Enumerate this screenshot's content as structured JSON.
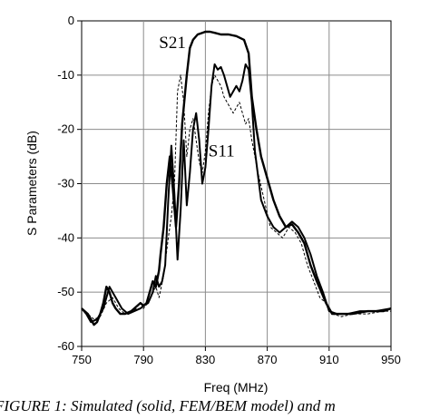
{
  "chart_data": {
    "type": "line",
    "xlabel": "Freq (MHz)",
    "ylabel": "S Parameters (dB)",
    "xlim": [
      750,
      950
    ],
    "ylim": [
      -60,
      0
    ],
    "xticks": [
      750,
      790,
      830,
      870,
      910,
      950
    ],
    "yticks": [
      0,
      -10,
      -20,
      -30,
      -40,
      -50,
      -60
    ],
    "grid": true,
    "legend": "none",
    "series": [
      {
        "name": "S21",
        "style": "solid",
        "x": [
          750,
          752,
          754,
          756,
          758,
          760,
          762,
          764,
          766,
          768,
          770,
          772,
          775,
          778,
          782,
          786,
          788,
          790,
          792,
          794,
          796,
          798,
          800,
          801,
          803,
          805,
          807,
          809,
          811,
          813,
          815,
          818,
          820,
          822,
          825,
          828,
          830,
          833,
          836,
          840,
          845,
          850,
          855,
          858,
          860,
          863,
          866,
          870,
          874,
          878,
          882,
          886,
          890,
          894,
          898,
          902,
          905,
          908,
          912,
          918,
          925,
          935,
          945,
          950
        ],
        "y": [
          -53,
          -53.5,
          -54,
          -55,
          -56,
          -55.5,
          -54,
          -52,
          -49,
          -50,
          -52,
          -53,
          -54,
          -54,
          -53.5,
          -52.5,
          -52,
          -52.5,
          -52,
          -50,
          -48,
          -49,
          -46,
          -43,
          -38,
          -30,
          -25,
          -31,
          -38,
          -30,
          -19,
          -10,
          -5,
          -3.5,
          -2.5,
          -2.2,
          -2,
          -2,
          -2.2,
          -2.5,
          -2.5,
          -2.8,
          -3.5,
          -6,
          -14,
          -20,
          -25,
          -29,
          -33,
          -36,
          -38,
          -37.5,
          -39,
          -41,
          -45,
          -48,
          -50,
          -52,
          -54,
          -54,
          -54,
          -53.5,
          -53.5,
          -53
        ]
      },
      {
        "name": "S11",
        "style": "solid",
        "x": [
          750,
          753,
          756,
          760,
          764,
          768,
          772,
          776,
          780,
          784,
          788,
          790,
          793,
          796,
          798,
          800,
          802,
          804,
          806,
          808,
          810,
          812,
          814,
          816,
          818,
          820,
          822,
          824,
          826,
          828,
          830,
          832,
          834,
          836,
          838,
          840,
          842,
          844,
          846,
          848,
          850,
          852,
          854,
          856,
          858,
          860,
          862,
          866,
          870,
          874,
          878,
          882,
          886,
          890,
          894,
          898,
          902,
          906,
          910,
          915,
          922,
          930,
          940,
          950
        ],
        "y": [
          -53,
          -54,
          -55.5,
          -55,
          -53,
          -49,
          -51,
          -53,
          -54,
          -53.5,
          -53,
          -52.5,
          -52,
          -50,
          -47,
          -49,
          -48,
          -45,
          -33,
          -23,
          -32,
          -44,
          -35,
          -22,
          -34,
          -28,
          -20,
          -17,
          -22,
          -30,
          -27,
          -20,
          -12,
          -8,
          -9,
          -8.5,
          -10,
          -12,
          -14,
          -13,
          -12,
          -13,
          -11,
          -8,
          -9,
          -15,
          -24,
          -33,
          -36,
          -38,
          -39,
          -38,
          -37,
          -38,
          -40,
          -43,
          -47,
          -50,
          -53.5,
          -54,
          -54,
          -53.5,
          -53.5,
          -53
        ]
      },
      {
        "name": "",
        "style": "dashed",
        "x": [
          750,
          754,
          758,
          762,
          766,
          770,
          774,
          778,
          782,
          786,
          790,
          794,
          798,
          800,
          803,
          806,
          808,
          810,
          812,
          814,
          816,
          818,
          820,
          822,
          824,
          826,
          828,
          830,
          832,
          834,
          836,
          838,
          840,
          842,
          844,
          846,
          848,
          850,
          852,
          854,
          856,
          858,
          860,
          864,
          868,
          872,
          876,
          880,
          884,
          888,
          892,
          896,
          900,
          904,
          908,
          912,
          918,
          926,
          935,
          945,
          950
        ],
        "y": [
          -53,
          -54,
          -55,
          -54.5,
          -52,
          -51,
          -53,
          -54,
          -53.5,
          -53,
          -53,
          -51.5,
          -49,
          -51,
          -47,
          -40,
          -36,
          -30,
          -13,
          -10,
          -15,
          -25,
          -20,
          -18,
          -22,
          -26,
          -28,
          -24,
          -17,
          -12,
          -10,
          -11,
          -12,
          -14,
          -15,
          -16,
          -17,
          -16,
          -15,
          -17,
          -19,
          -18,
          -22,
          -28,
          -33,
          -38,
          -39,
          -40,
          -38,
          -39,
          -41,
          -45,
          -48,
          -51,
          -52,
          -54,
          -54.5,
          -54,
          -54,
          -53.5,
          -53.5
        ]
      }
    ],
    "annotations": [
      {
        "text": "S21",
        "x": 800,
        "y": -5
      },
      {
        "text": "S11",
        "x": 832,
        "y": -25
      }
    ]
  },
  "caption": "FIGURE 1: Simulated (solid, FEM/BEM model) and m"
}
